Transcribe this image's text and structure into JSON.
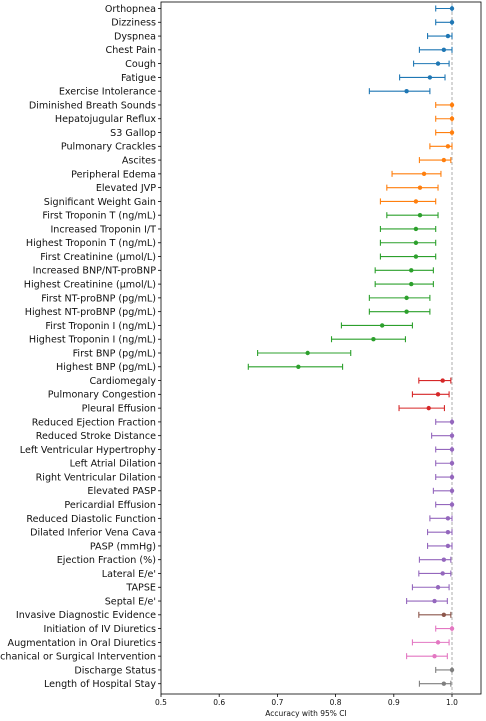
{
  "chart_data": {
    "type": "forest-plot",
    "xlabel": "Accuracy with 95% CI",
    "xlim": [
      0.5,
      1.0
    ],
    "xticks": [
      "0.5",
      "0.6",
      "0.7",
      "0.8",
      "0.9",
      "1.0"
    ],
    "reference_line": 1.0,
    "grid": false,
    "group_colors": {
      "blue": "#1f77b4",
      "orange": "#ff7f0e",
      "green": "#2ca02c",
      "red": "#d62728",
      "purple": "#9467bd",
      "brown": "#8c564b",
      "pink": "#e377c2",
      "gray": "#7f7f7f"
    },
    "rows": [
      {
        "label": "Orthopnea",
        "value": 1.0,
        "ci": [
          0.972,
          1.0
        ],
        "group": "blue"
      },
      {
        "label": "Dizziness",
        "value": 1.0,
        "ci": [
          0.972,
          1.0
        ],
        "group": "blue"
      },
      {
        "label": "Dyspnea",
        "value": 0.993,
        "ci": [
          0.958,
          1.0
        ],
        "group": "blue"
      },
      {
        "label": "Chest Pain",
        "value": 0.986,
        "ci": [
          0.944,
          1.0
        ],
        "group": "blue"
      },
      {
        "label": "Cough",
        "value": 0.976,
        "ci": [
          0.934,
          0.995
        ],
        "group": "blue"
      },
      {
        "label": "Fatigue",
        "value": 0.962,
        "ci": [
          0.91,
          0.988
        ],
        "group": "blue"
      },
      {
        "label": "Exercise Intolerance",
        "value": 0.922,
        "ci": [
          0.858,
          0.962
        ],
        "group": "blue"
      },
      {
        "label": "Diminished Breath Sounds",
        "value": 1.0,
        "ci": [
          0.972,
          1.0
        ],
        "group": "orange"
      },
      {
        "label": "Hepatojugular Reflux",
        "value": 1.0,
        "ci": [
          0.972,
          1.0
        ],
        "group": "orange"
      },
      {
        "label": "S3 Gallop",
        "value": 1.0,
        "ci": [
          0.972,
          1.0
        ],
        "group": "orange"
      },
      {
        "label": "Pulmonary Crackles",
        "value": 0.993,
        "ci": [
          0.962,
          1.0
        ],
        "group": "orange"
      },
      {
        "label": "Ascites",
        "value": 0.986,
        "ci": [
          0.944,
          0.998
        ],
        "group": "orange"
      },
      {
        "label": "Peripheral Edema",
        "value": 0.952,
        "ci": [
          0.897,
          0.981
        ],
        "group": "orange"
      },
      {
        "label": "Elevated JVP",
        "value": 0.945,
        "ci": [
          0.888,
          0.976
        ],
        "group": "orange"
      },
      {
        "label": "Significant Weight Gain",
        "value": 0.938,
        "ci": [
          0.877,
          0.972
        ],
        "group": "orange"
      },
      {
        "label": "First Troponin T (ng/mL)",
        "value": 0.945,
        "ci": [
          0.888,
          0.976
        ],
        "group": "green"
      },
      {
        "label": "Increased Troponin I/T",
        "value": 0.938,
        "ci": [
          0.877,
          0.972
        ],
        "group": "green"
      },
      {
        "label": "Highest Troponin T (ng/mL)",
        "value": 0.938,
        "ci": [
          0.877,
          0.972
        ],
        "group": "green"
      },
      {
        "label": "First Creatinine (µmol/L)",
        "value": 0.938,
        "ci": [
          0.877,
          0.972
        ],
        "group": "green"
      },
      {
        "label": "Increased BNP/NT-proBNP",
        "value": 0.93,
        "ci": [
          0.868,
          0.968
        ],
        "group": "green"
      },
      {
        "label": "Highest Creatinine (µmol/L)",
        "value": 0.93,
        "ci": [
          0.868,
          0.968
        ],
        "group": "green"
      },
      {
        "label": "First NT-proBNP (pg/mL)",
        "value": 0.922,
        "ci": [
          0.858,
          0.962
        ],
        "group": "green"
      },
      {
        "label": "Highest NT-proBNP (pg/mL)",
        "value": 0.922,
        "ci": [
          0.858,
          0.962
        ],
        "group": "green"
      },
      {
        "label": "First Troponin I (ng/mL)",
        "value": 0.88,
        "ci": [
          0.81,
          0.932
        ],
        "group": "green"
      },
      {
        "label": "Highest Troponin I (ng/mL)",
        "value": 0.865,
        "ci": [
          0.793,
          0.92
        ],
        "group": "green"
      },
      {
        "label": "First BNP (pg/mL)",
        "value": 0.752,
        "ci": [
          0.666,
          0.826
        ],
        "group": "green"
      },
      {
        "label": "Highest BNP (pg/mL)",
        "value": 0.736,
        "ci": [
          0.65,
          0.812
        ],
        "group": "green"
      },
      {
        "label": "Cardiomegaly",
        "value": 0.984,
        "ci": [
          0.943,
          0.998
        ],
        "group": "red"
      },
      {
        "label": "Pulmonary Congestion",
        "value": 0.976,
        "ci": [
          0.932,
          0.995
        ],
        "group": "red"
      },
      {
        "label": "Pleural Effusion",
        "value": 0.96,
        "ci": [
          0.909,
          0.987
        ],
        "group": "red"
      },
      {
        "label": "Reduced Ejection Fraction",
        "value": 1.0,
        "ci": [
          0.972,
          1.0
        ],
        "group": "purple"
      },
      {
        "label": "Reduced Stroke Distance",
        "value": 1.0,
        "ci": [
          0.965,
          1.0
        ],
        "group": "purple"
      },
      {
        "label": "Left Ventricular Hypertrophy",
        "value": 1.0,
        "ci": [
          0.972,
          1.0
        ],
        "group": "purple"
      },
      {
        "label": "Left Atrial Dilation",
        "value": 1.0,
        "ci": [
          0.972,
          1.0
        ],
        "group": "purple"
      },
      {
        "label": "Right Ventricular Dilation",
        "value": 1.0,
        "ci": [
          0.972,
          1.0
        ],
        "group": "purple"
      },
      {
        "label": "Elevated PASP",
        "value": 1.0,
        "ci": [
          0.968,
          1.0
        ],
        "group": "purple"
      },
      {
        "label": "Pericardial Effusion",
        "value": 1.0,
        "ci": [
          0.972,
          1.0
        ],
        "group": "purple"
      },
      {
        "label": "Reduced Diastolic Function",
        "value": 0.993,
        "ci": [
          0.962,
          1.0
        ],
        "group": "purple"
      },
      {
        "label": "Dilated Inferior Vena Cava",
        "value": 0.993,
        "ci": [
          0.958,
          1.0
        ],
        "group": "purple"
      },
      {
        "label": "PASP (mmHg)",
        "value": 0.993,
        "ci": [
          0.958,
          1.0
        ],
        "group": "purple"
      },
      {
        "label": "Ejection Fraction (%)",
        "value": 0.986,
        "ci": [
          0.944,
          0.998
        ],
        "group": "purple"
      },
      {
        "label": "Lateral E/e'",
        "value": 0.984,
        "ci": [
          0.943,
          0.998
        ],
        "group": "purple"
      },
      {
        "label": "TAPSE",
        "value": 0.976,
        "ci": [
          0.932,
          0.995
        ],
        "group": "purple"
      },
      {
        "label": "Septal E/e'",
        "value": 0.97,
        "ci": [
          0.922,
          0.992
        ],
        "group": "purple"
      },
      {
        "label": "Invasive Diagnostic Evidence",
        "value": 0.986,
        "ci": [
          0.943,
          0.998
        ],
        "group": "brown"
      },
      {
        "label": "Initiation of IV Diuretics",
        "value": 1.0,
        "ci": [
          0.972,
          1.0
        ],
        "group": "pink"
      },
      {
        "label": "Augmentation in Oral Diuretics",
        "value": 0.976,
        "ci": [
          0.932,
          0.995
        ],
        "group": "pink"
      },
      {
        "label": "Mechanical or Surgical Intervention",
        "value": 0.97,
        "ci": [
          0.922,
          0.992
        ],
        "group": "pink"
      },
      {
        "label": "Discharge Status",
        "value": 1.0,
        "ci": [
          0.972,
          1.0
        ],
        "group": "gray"
      },
      {
        "label": "Length of Hospital Stay",
        "value": 0.986,
        "ci": [
          0.944,
          0.998
        ],
        "group": "gray"
      }
    ]
  }
}
